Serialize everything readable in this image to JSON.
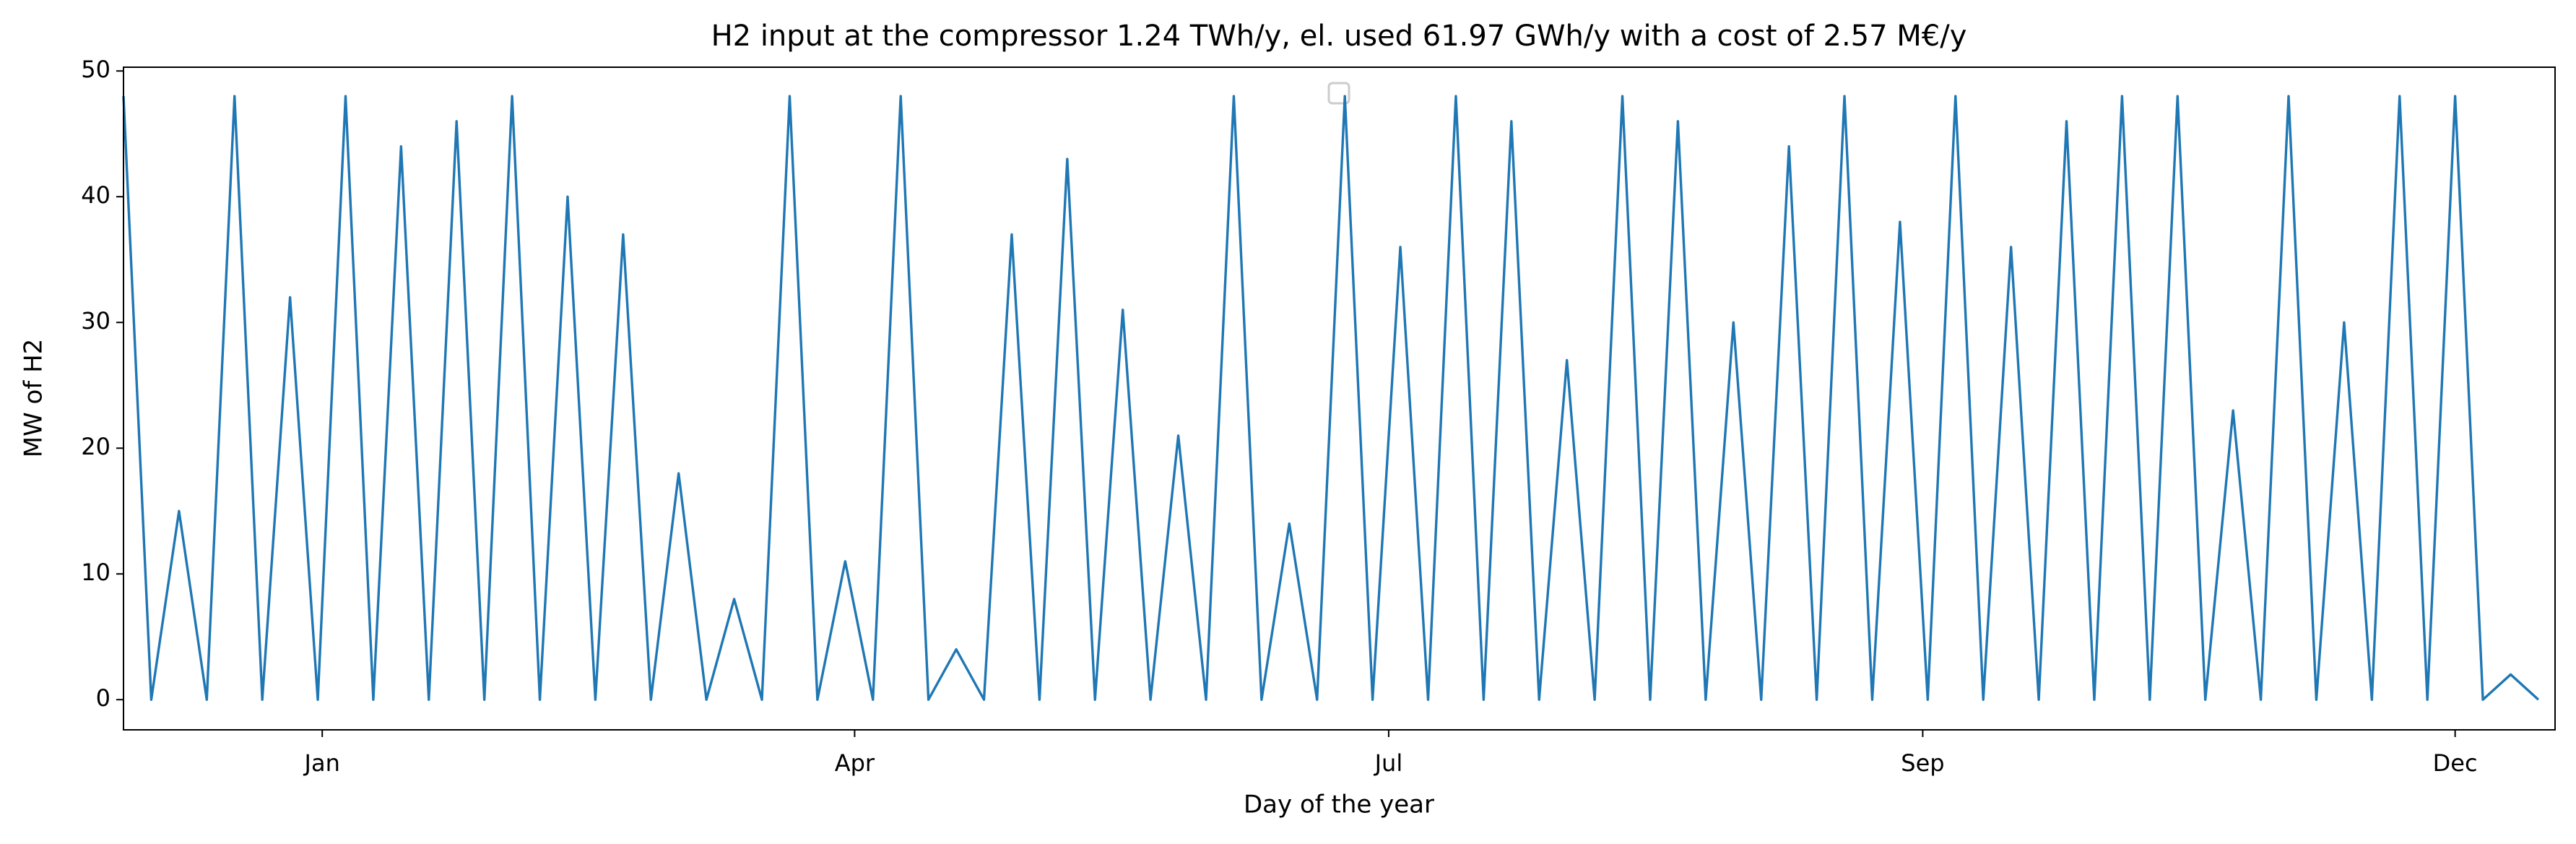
{
  "chart_data": {
    "type": "line",
    "title": "H2 input at the compressor 1.24 TWh/y, el. used 61.97 GWh/y with a cost of 2.57 M€/y",
    "x_label": "Day of the year",
    "y_label": "MW of H2",
    "x": [
      0,
      100,
      200,
      300,
      400,
      500,
      600,
      700,
      800,
      900,
      1000,
      1100,
      1200,
      1300,
      1400,
      1500,
      1600,
      1700,
      1800,
      1900,
      2000,
      2100,
      2200,
      2300,
      2400,
      2500,
      2600,
      2700,
      2800,
      2900,
      3000,
      3100,
      3200,
      3300,
      3400,
      3500,
      3600,
      3700,
      3800,
      3900,
      4000,
      4100,
      4200,
      4300,
      4400,
      4500,
      4600,
      4700,
      4800,
      4900,
      5000,
      5100,
      5200,
      5300,
      5400,
      5500,
      5600,
      5700,
      5800,
      5900,
      6000,
      6100,
      6200,
      6300,
      6400,
      6500,
      6600,
      6700,
      6800,
      6900,
      7000,
      7100,
      7200,
      7300,
      7400,
      7500,
      7600,
      7700,
      7800,
      7900,
      8000,
      8100,
      8200,
      8300,
      8400,
      8500,
      8600,
      8700
    ],
    "series": [
      {
        "color": "#1f77b4",
        "values": [
          48,
          0,
          15,
          0,
          48,
          0,
          32,
          0,
          48,
          0,
          44,
          0,
          46,
          0,
          48,
          0,
          40,
          0,
          37,
          0,
          18,
          0,
          8,
          0,
          48,
          0,
          11,
          0,
          48,
          0,
          4,
          0,
          37,
          0,
          43,
          0,
          31,
          0,
          21,
          0,
          48,
          0,
          14,
          0,
          48,
          0,
          36,
          0,
          48,
          0,
          46,
          0,
          27,
          0,
          48,
          0,
          46,
          0,
          30,
          0,
          44,
          0,
          48,
          0,
          38,
          0,
          48,
          0,
          36,
          0,
          46,
          0,
          48,
          0,
          48,
          0,
          23,
          0,
          48,
          0,
          30,
          0,
          48,
          0,
          48,
          0,
          2,
          0
        ]
      }
    ],
    "xlim": [
      0,
      8760
    ],
    "ylim": [
      -2.4,
      50.3
    ],
    "xticks": [
      {
        "value": 716,
        "label": "Jan"
      },
      {
        "value": 2634,
        "label": "Apr"
      },
      {
        "value": 4558,
        "label": "Jul"
      },
      {
        "value": 6482,
        "label": "Sep"
      },
      {
        "value": 8400,
        "label": "Dec"
      }
    ],
    "yticks": [
      0,
      10,
      20,
      30,
      40,
      50
    ]
  }
}
